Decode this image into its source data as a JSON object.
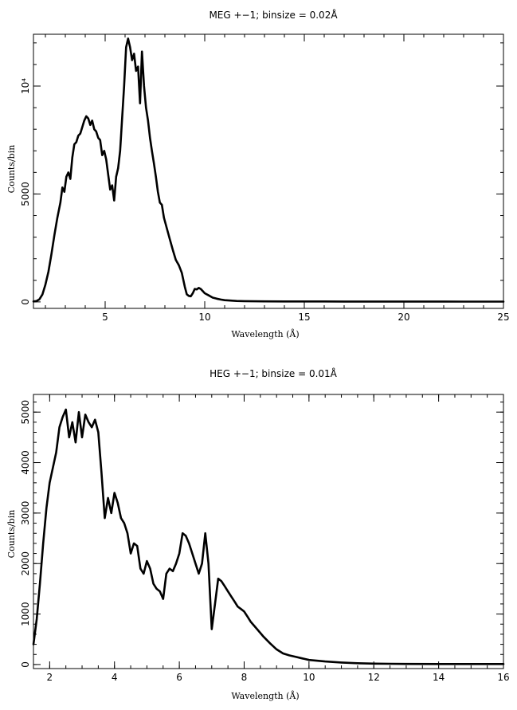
{
  "chart_data": [
    {
      "type": "line",
      "title": "MEG +−1; binsize = 0.02Å",
      "xlabel": "Wavelength (Å)",
      "ylabel": "Counts/bin",
      "xlim": [
        1.4,
        25
      ],
      "ylim": [
        -300,
        12400
      ],
      "x_ticks": [
        5,
        10,
        15,
        20,
        25
      ],
      "y_ticks": [
        0,
        5000,
        10000
      ],
      "y_tick_labels": [
        "0",
        "5000",
        "10⁴"
      ],
      "series": [
        {
          "x": [
            1.4,
            1.55,
            1.7,
            1.85,
            2.0,
            2.15,
            2.3,
            2.45,
            2.6,
            2.75,
            2.85,
            2.95,
            3.05,
            3.15,
            3.25,
            3.35,
            3.45,
            3.55,
            3.65,
            3.75,
            3.85,
            3.95,
            4.05,
            4.15,
            4.25,
            4.35,
            4.45,
            4.55,
            4.65,
            4.75,
            4.85,
            4.95,
            5.05,
            5.15,
            5.25,
            5.35,
            5.45,
            5.55,
            5.65,
            5.75,
            5.85,
            5.95,
            6.05,
            6.15,
            6.25,
            6.35,
            6.45,
            6.55,
            6.65,
            6.75,
            6.85,
            6.95,
            7.05,
            7.15,
            7.25,
            7.35,
            7.45,
            7.55,
            7.65,
            7.75,
            7.85,
            7.95,
            8.1,
            8.25,
            8.4,
            8.55,
            8.7,
            8.85,
            9.0,
            9.1,
            9.2,
            9.3,
            9.4,
            9.5,
            9.6,
            9.7,
            9.8,
            9.9,
            10.0,
            10.2,
            10.4,
            10.6,
            10.8,
            11.0,
            11.3,
            11.6,
            12.0,
            12.5,
            13.0,
            14.0,
            15.0,
            16.0,
            17.0,
            18.0,
            19.0,
            20.0,
            21.0,
            22.0,
            23.0,
            24.0,
            25.0
          ],
          "y": [
            20,
            40,
            120,
            350,
            800,
            1400,
            2200,
            3100,
            3900,
            4600,
            5300,
            5100,
            5800,
            6000,
            5700,
            6700,
            7300,
            7400,
            7700,
            7800,
            8100,
            8400,
            8600,
            8500,
            8200,
            8400,
            8000,
            7900,
            7600,
            7500,
            6800,
            7000,
            6600,
            5900,
            5200,
            5400,
            4700,
            5800,
            6200,
            7000,
            8500,
            10000,
            11800,
            12200,
            11800,
            11200,
            11500,
            10700,
            10900,
            9200,
            11600,
            10000,
            9000,
            8400,
            7600,
            7000,
            6400,
            5800,
            5100,
            4600,
            4500,
            3900,
            3400,
            2900,
            2400,
            1950,
            1700,
            1350,
            700,
            350,
            280,
            260,
            400,
            600,
            580,
            650,
            600,
            500,
            400,
            300,
            200,
            150,
            110,
            80,
            60,
            45,
            35,
            30,
            25,
            20,
            20,
            20,
            18,
            18,
            17,
            17,
            16,
            16,
            15,
            15,
            15
          ]
        }
      ]
    },
    {
      "type": "line",
      "title": "HEG +−1; binsize = 0.01Å",
      "xlabel": "Wavelength (Å)",
      "ylabel": "Counts/bin",
      "xlim": [
        1.5,
        16
      ],
      "ylim": [
        -80,
        5350
      ],
      "x_ticks": [
        2,
        4,
        6,
        8,
        10,
        12,
        14,
        16
      ],
      "y_ticks": [
        0,
        1000,
        2000,
        3000,
        4000,
        5000
      ],
      "y_tick_labels": [
        "0",
        "1000",
        "2000",
        "3000",
        "4000",
        "5000"
      ],
      "series": [
        {
          "x": [
            1.5,
            1.6,
            1.7,
            1.8,
            1.9,
            2.0,
            2.1,
            2.2,
            2.3,
            2.4,
            2.5,
            2.6,
            2.7,
            2.8,
            2.9,
            3.0,
            3.1,
            3.2,
            3.3,
            3.4,
            3.5,
            3.6,
            3.7,
            3.8,
            3.9,
            4.0,
            4.1,
            4.2,
            4.3,
            4.4,
            4.5,
            4.6,
            4.7,
            4.8,
            4.9,
            5.0,
            5.1,
            5.2,
            5.3,
            5.4,
            5.5,
            5.6,
            5.7,
            5.8,
            5.9,
            6.0,
            6.1,
            6.2,
            6.3,
            6.4,
            6.5,
            6.6,
            6.7,
            6.8,
            6.9,
            7.0,
            7.1,
            7.2,
            7.3,
            7.4,
            7.5,
            7.6,
            7.7,
            7.8,
            7.9,
            8.0,
            8.1,
            8.2,
            8.4,
            8.6,
            8.8,
            9.0,
            9.2,
            9.4,
            9.6,
            9.8,
            10.0,
            10.5,
            11.0,
            11.5,
            12.0,
            12.5,
            13.0,
            14.0,
            15.0,
            16.0
          ],
          "y": [
            400,
            900,
            1600,
            2400,
            3100,
            3600,
            3900,
            4200,
            4700,
            4900,
            5050,
            4500,
            4800,
            4400,
            5000,
            4500,
            4950,
            4800,
            4700,
            4850,
            4600,
            3800,
            2900,
            3300,
            3000,
            3400,
            3200,
            2900,
            2800,
            2600,
            2200,
            2400,
            2350,
            1900,
            1800,
            2050,
            1900,
            1600,
            1500,
            1450,
            1300,
            1800,
            1900,
            1850,
            2000,
            2200,
            2600,
            2550,
            2400,
            2200,
            2000,
            1800,
            2000,
            2600,
            2000,
            700,
            1200,
            1700,
            1650,
            1550,
            1450,
            1350,
            1250,
            1150,
            1100,
            1050,
            950,
            850,
            700,
            550,
            420,
            300,
            220,
            180,
            150,
            120,
            90,
            60,
            40,
            25,
            18,
            14,
            12,
            10,
            10,
            10
          ]
        }
      ]
    }
  ]
}
